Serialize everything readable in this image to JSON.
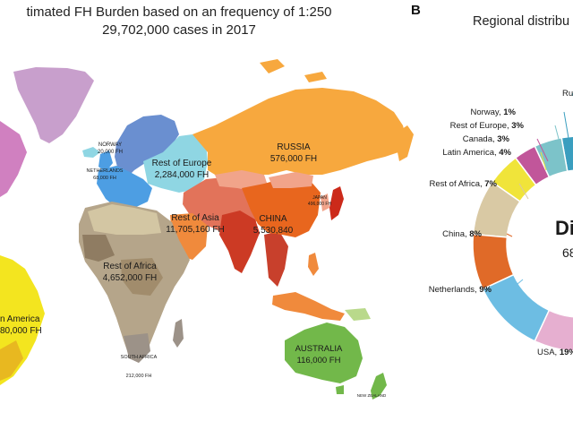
{
  "panel_a": {
    "title_line1": "timated FH Burden based on an frequency of 1:250",
    "title_line2": "29,702,000 cases in 2017",
    "regions": {
      "norway": {
        "name": "NORWAY",
        "value": "20,000 FH"
      },
      "netherlands": {
        "name": "NETHERLANDS",
        "value": "68,000 FH"
      },
      "rest_of_europe": {
        "name": "Rest of Europe",
        "value": "2,284,000 FH"
      },
      "russia": {
        "name": "RUSSIA",
        "value": "576,000 FH"
      },
      "rest_of_asia": {
        "name": "Rest of Asia",
        "value": "11,705,160 FH"
      },
      "china": {
        "name": "CHINA",
        "value": "5,530,840"
      },
      "japan": {
        "name": "JAPAN",
        "value": "496,000 FH"
      },
      "rest_of_africa": {
        "name": "Rest of Africa",
        "value": "4,652,000 FH"
      },
      "south_africa": {
        "name": "SOUTH AFRICA",
        "value": "212,000 FH"
      },
      "latin_america": {
        "name": "n America",
        "value": "80,000 FH"
      },
      "australia": {
        "name": "AUSTRALIA",
        "value": "116,000 FH"
      },
      "new_zealand": {
        "name": "NEW ZEALAND",
        "value": ""
      }
    },
    "colors": {
      "russia": "#f7a83e",
      "rest_of_europe": "#8fd6e3",
      "scandinavia": "#6a8fd0",
      "western_europe": "#4d9ee3",
      "rest_of_asia": "#e2735a",
      "china": "#e8661e",
      "africa": "#b5a58a",
      "latin_america": "#f3e51f",
      "australia": "#72b84a",
      "greenland": "#c89fcc",
      "north_america": "#d080c0"
    }
  },
  "panel_b": {
    "letter": "B",
    "title": "Regional distribu",
    "center_label": "Di",
    "center_value": "68",
    "chart_data": {
      "type": "pie",
      "slices": [
        {
          "label": "Rus",
          "pct_text": "",
          "color": "#6fbecd"
        },
        {
          "label": "Norway,",
          "pct_text": "1%",
          "value": 1,
          "color": "#3a9ebf"
        },
        {
          "label": "Rest of Europe,",
          "pct_text": "3%",
          "value": 3,
          "color": "#7cc3c9"
        },
        {
          "label": "Canada,",
          "pct_text": "3%",
          "value": 3,
          "color": "#c1569a"
        },
        {
          "label": "Latin America,",
          "pct_text": "4%",
          "value": 4,
          "color": "#f0e43a"
        },
        {
          "label": "Rest of Africa,",
          "pct_text": "7%",
          "value": 7,
          "color": "#d9c9a4"
        },
        {
          "label": "China,",
          "pct_text": "8%",
          "value": 8,
          "color": "#e06a28"
        },
        {
          "label": "Netherlands,",
          "pct_text": "9%",
          "value": 9,
          "color": "#6dbde3"
        },
        {
          "label": "USA,",
          "pct_text": "19%",
          "value": 19,
          "color": "#e6afd0"
        }
      ]
    }
  }
}
